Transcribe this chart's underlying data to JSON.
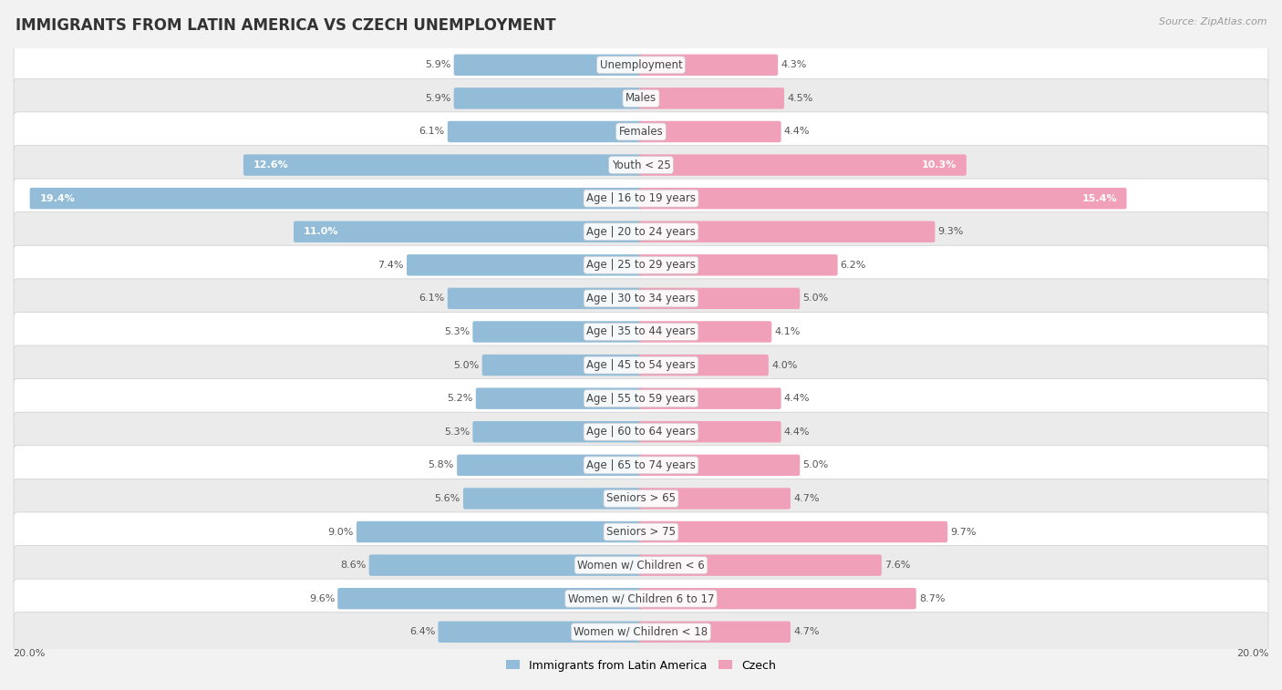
{
  "title": "IMMIGRANTS FROM LATIN AMERICA VS CZECH UNEMPLOYMENT",
  "source": "Source: ZipAtlas.com",
  "categories": [
    "Unemployment",
    "Males",
    "Females",
    "Youth < 25",
    "Age | 16 to 19 years",
    "Age | 20 to 24 years",
    "Age | 25 to 29 years",
    "Age | 30 to 34 years",
    "Age | 35 to 44 years",
    "Age | 45 to 54 years",
    "Age | 55 to 59 years",
    "Age | 60 to 64 years",
    "Age | 65 to 74 years",
    "Seniors > 65",
    "Seniors > 75",
    "Women w/ Children < 6",
    "Women w/ Children 6 to 17",
    "Women w/ Children < 18"
  ],
  "left_values": [
    5.9,
    5.9,
    6.1,
    12.6,
    19.4,
    11.0,
    7.4,
    6.1,
    5.3,
    5.0,
    5.2,
    5.3,
    5.8,
    5.6,
    9.0,
    8.6,
    9.6,
    6.4
  ],
  "right_values": [
    4.3,
    4.5,
    4.4,
    10.3,
    15.4,
    9.3,
    6.2,
    5.0,
    4.1,
    4.0,
    4.4,
    4.4,
    5.0,
    4.7,
    9.7,
    7.6,
    8.7,
    4.7
  ],
  "left_color": "#92bcd8",
  "right_color": "#f0a0b8",
  "bg_color": "#f2f2f2",
  "row_colors": [
    "#ffffff",
    "#ebebeb"
  ],
  "axis_max": 20.0,
  "left_label": "Immigrants from Latin America",
  "right_label": "Czech",
  "title_fontsize": 12,
  "source_fontsize": 8,
  "label_fontsize": 8.5,
  "value_fontsize": 8,
  "inside_value_threshold": 10.0
}
